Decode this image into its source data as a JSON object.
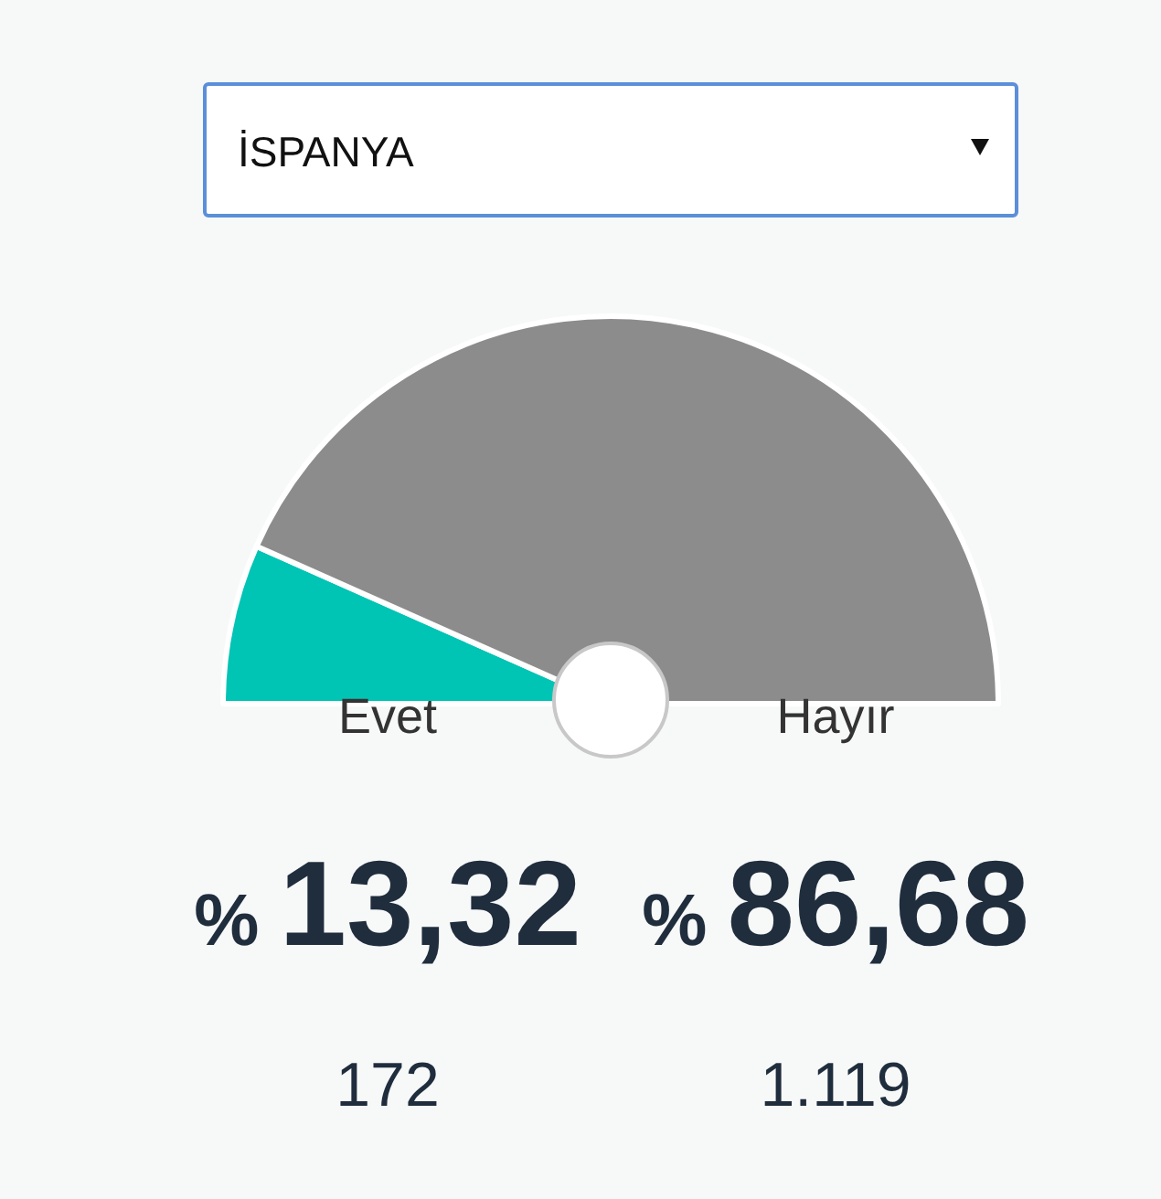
{
  "chart_data": {
    "type": "pie",
    "title": "İSPANYA",
    "categories": [
      "Evet",
      "Hayır"
    ],
    "values": [
      13.32,
      86.68
    ],
    "colors": [
      "#00c4b4",
      "#8c8c8c"
    ],
    "value_labels": [
      "% 13,32",
      "% 86,68"
    ],
    "annotations": [
      "172",
      "1.119"
    ]
  }
}
